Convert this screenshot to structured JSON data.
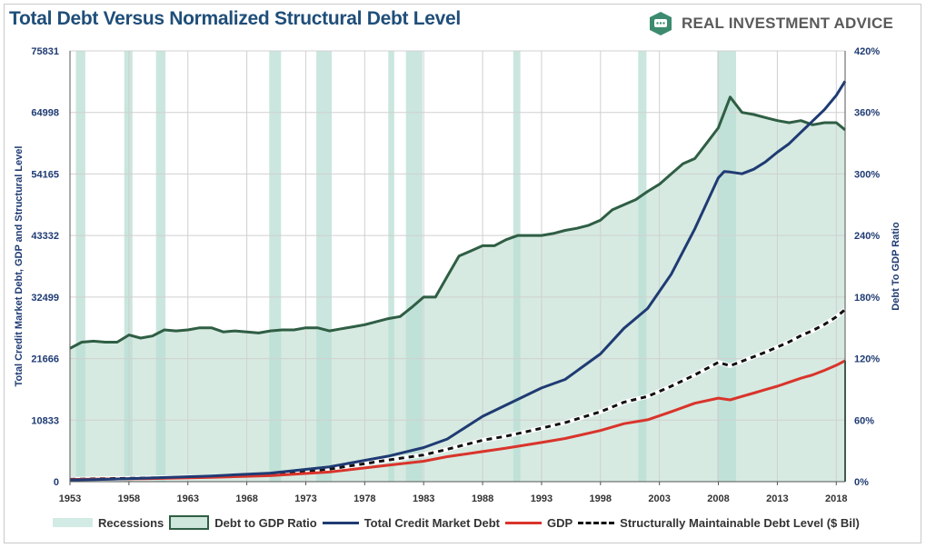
{
  "header": {
    "title": "Total Debt Versus Normalized Structural Debt Level",
    "brand": "REAL INVESTMENT ADVICE",
    "brand_icon": "chat-bubble-icon",
    "brand_color": "#3d8b6e"
  },
  "legend": {
    "recessions": "Recessions",
    "ratio": "Debt to GDP Ratio",
    "debt": "Total Credit Market Debt",
    "gdp": "GDP",
    "structural": "Structurally Maintainable Debt Level ($ Bil)"
  },
  "chart_data": {
    "type": "line",
    "title": "Total Debt Versus Normalized Structural Debt Level",
    "ylabel_left": "Total Credit Market Debt, GDP and Structural Level",
    "ylabel_right": "Debt To GDP Ratio",
    "x_range": [
      1953,
      2018.75
    ],
    "x_ticks": [
      "1953",
      "1958",
      "1963",
      "1968",
      "1973",
      "1978",
      "1983",
      "1988",
      "1993",
      "1998",
      "2003",
      "2008",
      "2013",
      "2018"
    ],
    "y_left_ticks": [
      "0",
      "10833",
      "21666",
      "32499",
      "43332",
      "54165",
      "64998",
      "75831"
    ],
    "y_left_range": [
      0,
      75831
    ],
    "y_right_ticks": [
      "0%",
      "60%",
      "120%",
      "180%",
      "240%",
      "300%",
      "360%",
      "420%"
    ],
    "y_right_range": [
      0,
      420
    ],
    "grid": true,
    "legend_position": "bottom",
    "colors": {
      "debt": "#1f3b73",
      "gdp": "#d9342b",
      "ratio_line": "#2f5e44",
      "ratio_fill": "#cfe6dc",
      "recession": "#b8ded3",
      "structural": "#111111"
    },
    "recessions": [
      [
        1953.5,
        1954.3
      ],
      [
        1957.6,
        1958.3
      ],
      [
        1960.3,
        1961.1
      ],
      [
        1969.9,
        1970.9
      ],
      [
        1973.9,
        1975.2
      ],
      [
        1980.0,
        1980.5
      ],
      [
        1981.5,
        1982.9
      ],
      [
        1990.6,
        1991.2
      ],
      [
        2001.2,
        2001.9
      ],
      [
        2007.9,
        2009.5
      ]
    ],
    "series": [
      {
        "name": "Debt to GDP Ratio",
        "axis": "right",
        "x": [
          1953,
          1954,
          1955,
          1956,
          1957,
          1958,
          1959,
          1960,
          1961,
          1962,
          1963,
          1964,
          1965,
          1966,
          1967,
          1968,
          1969,
          1970,
          1971,
          1972,
          1973,
          1974,
          1975,
          1976,
          1977,
          1978,
          1979,
          1980,
          1981,
          1982,
          1983,
          1984,
          1985,
          1986,
          1987,
          1988,
          1989,
          1990,
          1991,
          1992,
          1993,
          1994,
          1995,
          1996,
          1997,
          1998,
          1999,
          2000,
          2001,
          2002,
          2003,
          2004,
          2005,
          2006,
          2007,
          2008,
          2009,
          2010,
          2011,
          2012,
          2013,
          2014,
          2015,
          2016,
          2017,
          2018,
          2018.75
        ],
        "values": [
          130,
          136,
          137,
          136,
          136,
          143,
          140,
          142,
          148,
          147,
          148,
          150,
          150,
          146,
          147,
          146,
          145,
          147,
          148,
          148,
          150,
          150,
          147,
          149,
          151,
          153,
          156,
          159,
          161,
          170,
          180,
          180,
          200,
          220,
          225,
          230,
          230,
          236,
          240,
          240,
          240,
          242,
          245,
          247,
          250,
          255,
          265,
          270,
          275,
          283,
          290,
          300,
          310,
          315,
          330,
          345,
          375,
          360,
          358,
          355,
          352,
          350,
          352,
          348,
          350,
          350,
          343
        ]
      },
      {
        "name": "Total Credit Market Debt",
        "axis": "left",
        "x": [
          1953,
          1955,
          1960,
          1965,
          1970,
          1975,
          1980,
          1983,
          1985,
          1988,
          1990,
          1993,
          1995,
          1998,
          2000,
          2002,
          2004,
          2006,
          2008,
          2008.5,
          2009,
          2010,
          2011,
          2012,
          2013,
          2014,
          2015,
          2016,
          2017,
          2018,
          2018.75
        ],
        "values": [
          300,
          350,
          650,
          1000,
          1500,
          2600,
          4500,
          6000,
          7500,
          11500,
          13500,
          16500,
          18000,
          22500,
          27000,
          30500,
          36500,
          44500,
          53500,
          54600,
          54500,
          54200,
          55000,
          56300,
          58000,
          59500,
          61500,
          63500,
          65500,
          68000,
          70500
        ]
      },
      {
        "name": "GDP",
        "axis": "left",
        "x": [
          1953,
          1955,
          1960,
          1965,
          1970,
          1975,
          1980,
          1983,
          1985,
          1988,
          1990,
          1993,
          1995,
          1998,
          2000,
          2002,
          2004,
          2006,
          2008,
          2009,
          2010,
          2011,
          2012,
          2013,
          2014,
          2015,
          2016,
          2017,
          2018,
          2018.75
        ],
        "values": [
          380,
          430,
          550,
          750,
          1050,
          1700,
          2900,
          3600,
          4400,
          5300,
          5900,
          6900,
          7600,
          9000,
          10200,
          10900,
          12300,
          13800,
          14700,
          14400,
          15000,
          15600,
          16200,
          16800,
          17500,
          18200,
          18800,
          19600,
          20500,
          21300
        ]
      },
      {
        "name": "Structurally Maintainable Debt Level ($ Bil)",
        "axis": "left",
        "x": [
          1953,
          1955,
          1960,
          1965,
          1970,
          1975,
          1980,
          1983,
          1985,
          1988,
          1990,
          1993,
          1995,
          1998,
          2000,
          2002,
          2004,
          2006,
          2008,
          2009,
          2010,
          2011,
          2012,
          2013,
          2014,
          2015,
          2016,
          2017,
          2018,
          2018.75
        ],
        "values": [
          420,
          490,
          650,
          900,
          1300,
          2200,
          3800,
          4700,
          5700,
          7300,
          8000,
          9400,
          10400,
          12300,
          14000,
          15000,
          16800,
          18800,
          21000,
          20400,
          21200,
          22000,
          22800,
          23700,
          24600,
          25700,
          26600,
          27700,
          29000,
          30300
        ]
      }
    ]
  }
}
